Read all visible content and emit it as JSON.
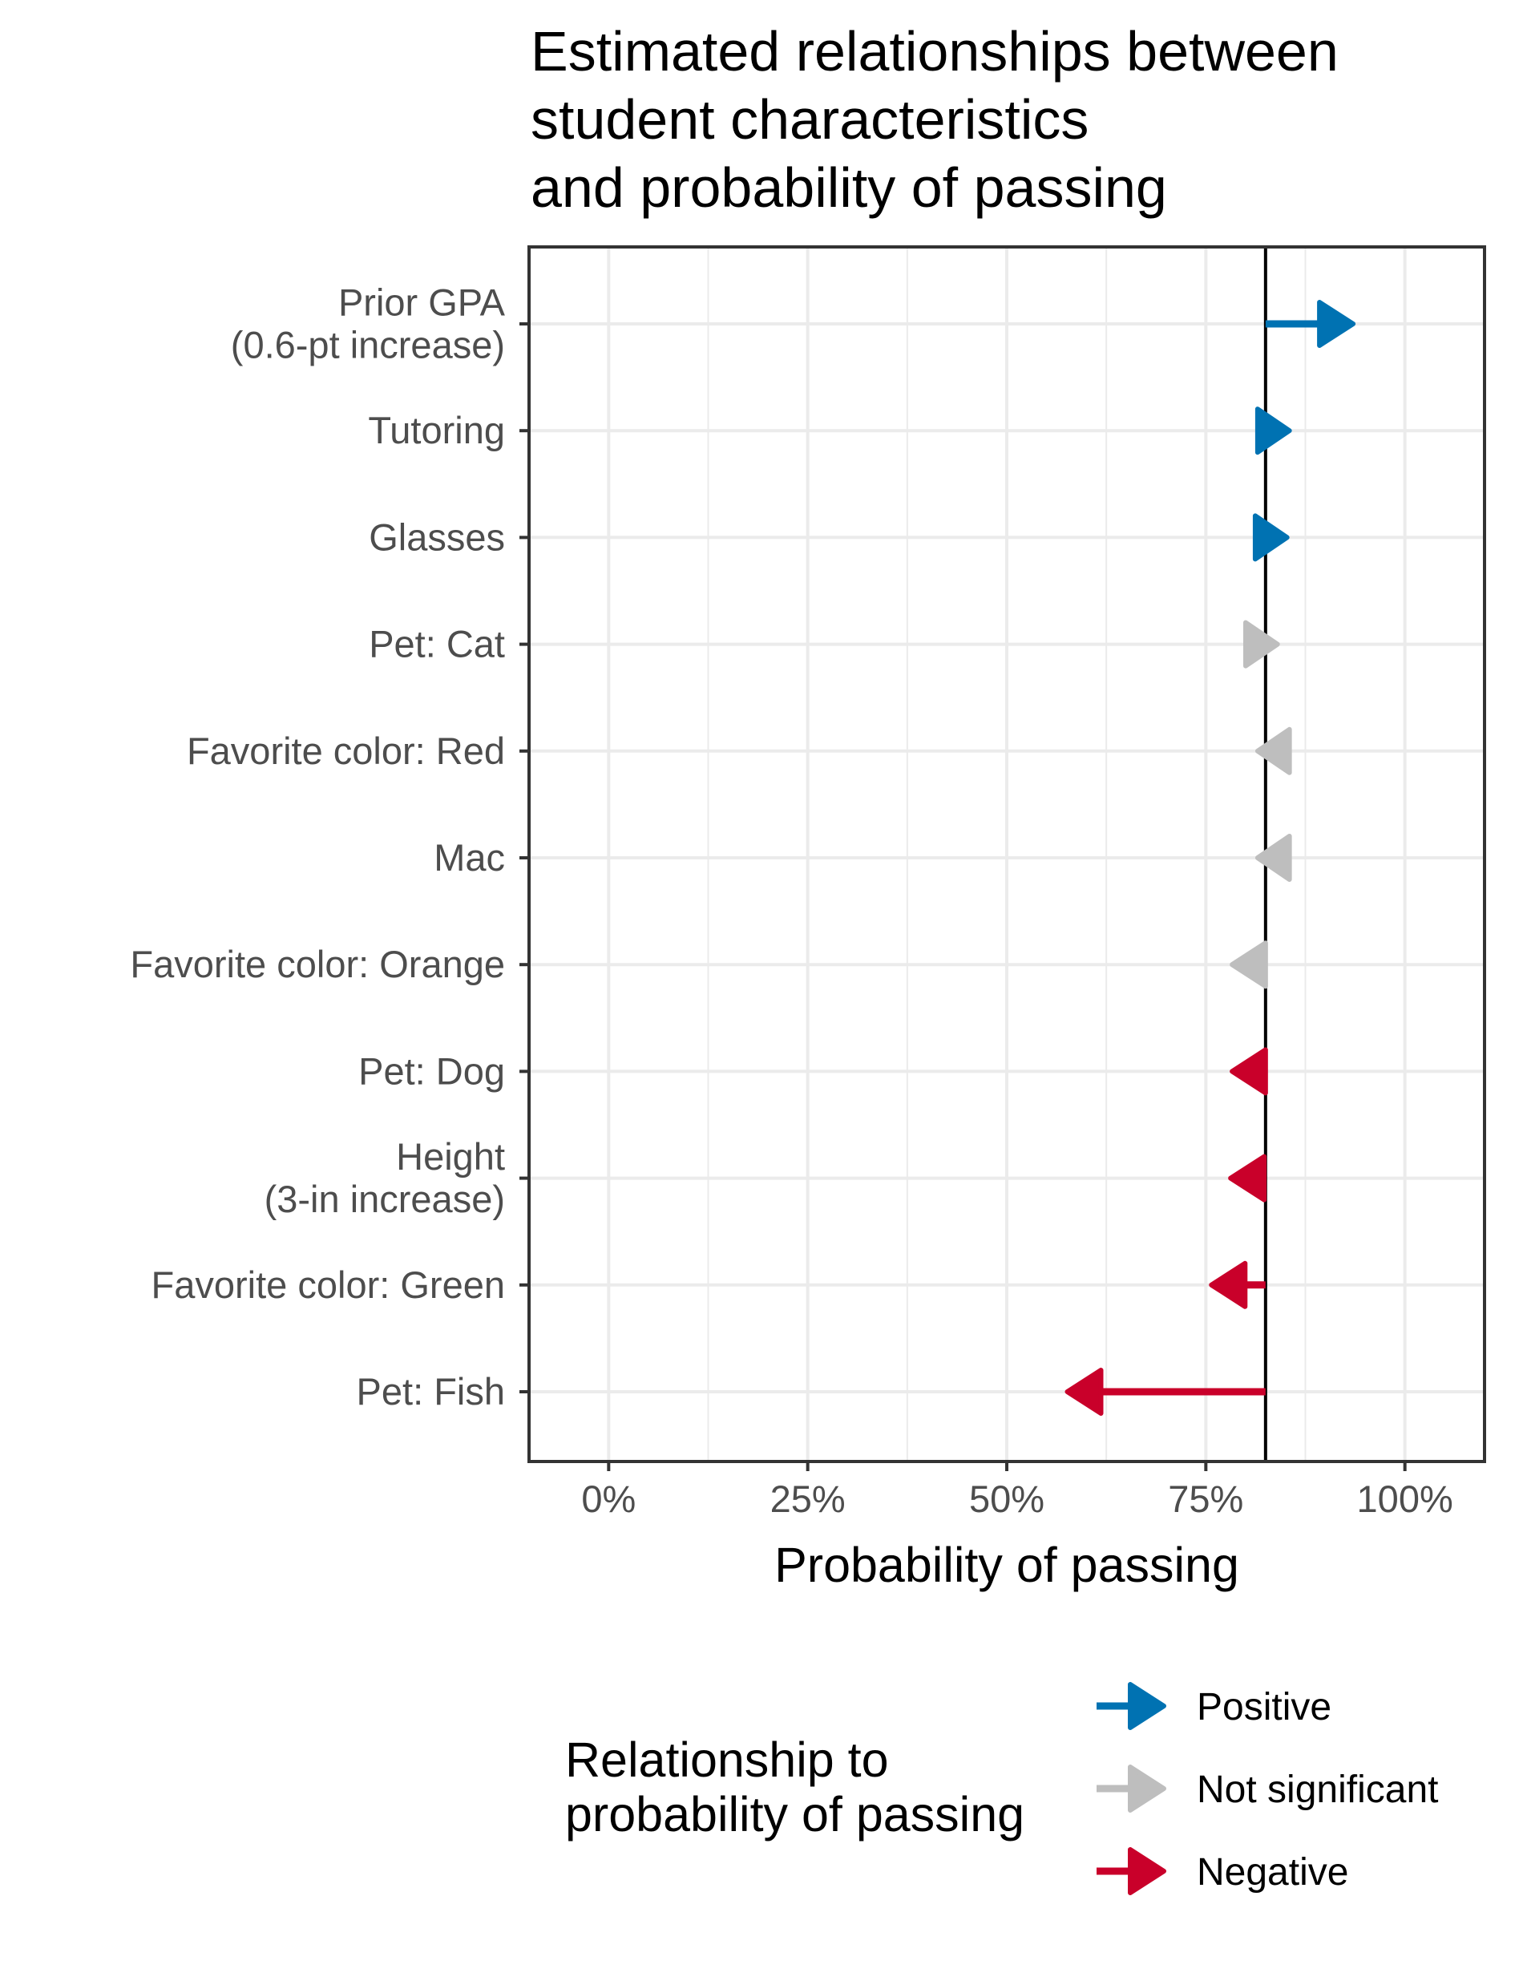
{
  "chart_data": {
    "type": "arrow",
    "title": [
      "Estimated relationships between",
      "student characteristics",
      "and probability of passing"
    ],
    "xlabel": "Probability of passing",
    "ylabel": "",
    "xlim": [
      -0.1,
      1.1
    ],
    "xticks": [
      0,
      0.25,
      0.5,
      0.75,
      1.0
    ],
    "xtick_labels": [
      "0%",
      "25%",
      "50%",
      "75%",
      "100%"
    ],
    "baseline": 0.825,
    "rows": [
      {
        "label": [
          "Prior GPA",
          "(0.6-pt increase)"
        ],
        "start": 0.825,
        "end": 0.935,
        "group": "positive"
      },
      {
        "label": [
          "Tutoring"
        ],
        "start": 0.815,
        "end": 0.855,
        "group": "positive"
      },
      {
        "label": [
          "Glasses"
        ],
        "start": 0.812,
        "end": 0.852,
        "group": "positive"
      },
      {
        "label": [
          "Pet: Cat"
        ],
        "start": 0.8,
        "end": 0.84,
        "group": "not_significant"
      },
      {
        "label": [
          "Favorite color: Red"
        ],
        "start": 0.855,
        "end": 0.815,
        "group": "not_significant"
      },
      {
        "label": [
          "Mac"
        ],
        "start": 0.855,
        "end": 0.815,
        "group": "not_significant"
      },
      {
        "label": [
          "Favorite color: Orange"
        ],
        "start": 0.825,
        "end": 0.783,
        "group": "not_significant"
      },
      {
        "label": [
          "Pet: Dog"
        ],
        "start": 0.825,
        "end": 0.783,
        "group": "negative"
      },
      {
        "label": [
          "Height",
          "(3-in increase)"
        ],
        "start": 0.825,
        "end": 0.781,
        "group": "negative"
      },
      {
        "label": [
          "Favorite color: Green"
        ],
        "start": 0.825,
        "end": 0.757,
        "group": "negative"
      },
      {
        "label": [
          "Pet: Fish"
        ],
        "start": 0.825,
        "end": 0.576,
        "group": "negative"
      }
    ],
    "legend": {
      "title": [
        "Relationship to",
        "probability of passing"
      ],
      "items": [
        {
          "key": "positive",
          "label": "Positive"
        },
        {
          "key": "not_significant",
          "label": "Not significant"
        },
        {
          "key": "negative",
          "label": "Negative"
        }
      ]
    },
    "colors": {
      "positive": "#0072b2",
      "not_significant": "#bebebe",
      "negative": "#c9002a",
      "grid": "#ebebeb",
      "axis": "#333333",
      "tick": "#333333",
      "baseline": "#000000"
    },
    "grid": true
  }
}
